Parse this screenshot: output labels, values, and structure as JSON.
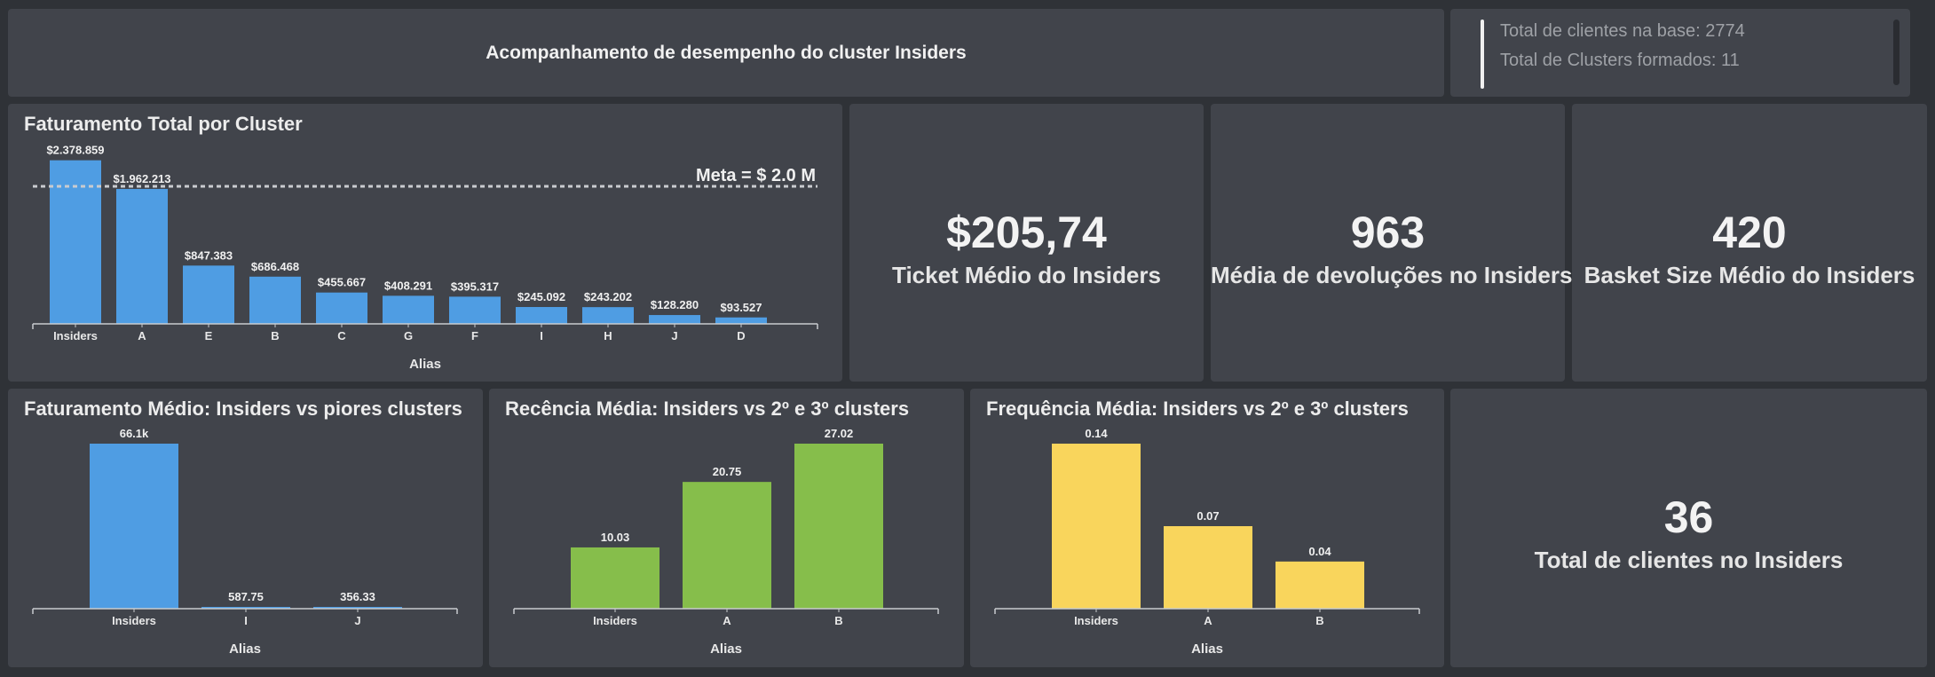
{
  "header": {
    "title": "Acompanhamento de desempenho do cluster Insiders"
  },
  "info": {
    "total_clientes": "Total de clientes na base: 2774",
    "total_clusters": "Total de Clusters formados: 11"
  },
  "kpis": {
    "ticket": {
      "value": "$205,74",
      "label": "Ticket Médio do Insiders"
    },
    "devolucoes": {
      "value": "963",
      "label": "Média de devoluções no Insiders"
    },
    "basket": {
      "value": "420",
      "label": "Basket Size Médio do Insiders"
    },
    "clientes": {
      "value": "36",
      "label": "Total de clientes no Insiders"
    }
  },
  "colors": {
    "blue": "#4f9de3",
    "green": "#86be4b",
    "yellow": "#f9d55c",
    "card": "#41444b",
    "background": "#2f3237"
  },
  "chart_data": [
    {
      "id": "faturamento_total",
      "type": "bar",
      "title": "Faturamento Total por Cluster",
      "xlabel": "Alias",
      "ylabel": "",
      "categories": [
        "Insiders",
        "A",
        "E",
        "B",
        "C",
        "G",
        "F",
        "I",
        "H",
        "J",
        "D"
      ],
      "values": [
        2378859,
        1962213,
        847383,
        686468,
        455667,
        408291,
        395317,
        245092,
        243202,
        128280,
        93527
      ],
      "labels": [
        "$2.378.859",
        "$1.962.213",
        "$847.383",
        "$686.468",
        "$455.667",
        "$408.291",
        "$395.317",
        "$245.092",
        "$243.202",
        "$128.280",
        "$93.527"
      ],
      "ylim": [
        0,
        2400000
      ],
      "reference_line": {
        "value": 2000000,
        "label": "Meta = $ 2.0 M"
      },
      "color": "#4f9de3",
      "grid": false
    },
    {
      "id": "faturamento_medio",
      "type": "bar",
      "title": "Faturamento Médio: Insiders vs piores clusters",
      "xlabel": "Alias",
      "ylabel": "",
      "categories": [
        "Insiders",
        "I",
        "J"
      ],
      "values": [
        66100,
        587.75,
        356.33
      ],
      "labels": [
        "66.1k",
        "587.75",
        "356.33"
      ],
      "ylim": [
        0,
        66100
      ],
      "color": "#4f9de3",
      "grid": false
    },
    {
      "id": "recencia_media",
      "type": "bar",
      "title": "Recência Média: Insiders vs 2º e 3º clusters",
      "xlabel": "Alias",
      "ylabel": "",
      "categories": [
        "Insiders",
        "A",
        "B"
      ],
      "values": [
        10.03,
        20.75,
        27.02
      ],
      "labels": [
        "10.03",
        "20.75",
        "27.02"
      ],
      "ylim": [
        0,
        27.02
      ],
      "color": "#86be4b",
      "grid": false
    },
    {
      "id": "frequencia_media",
      "type": "bar",
      "title": "Frequência Média: Insiders vs 2º e 3º clusters",
      "xlabel": "Alias",
      "ylabel": "",
      "categories": [
        "Insiders",
        "A",
        "B"
      ],
      "values": [
        0.14,
        0.07,
        0.04
      ],
      "labels": [
        "0.14",
        "0.07",
        "0.04"
      ],
      "ylim": [
        0,
        0.14
      ],
      "color": "#f9d55c",
      "grid": false
    }
  ]
}
